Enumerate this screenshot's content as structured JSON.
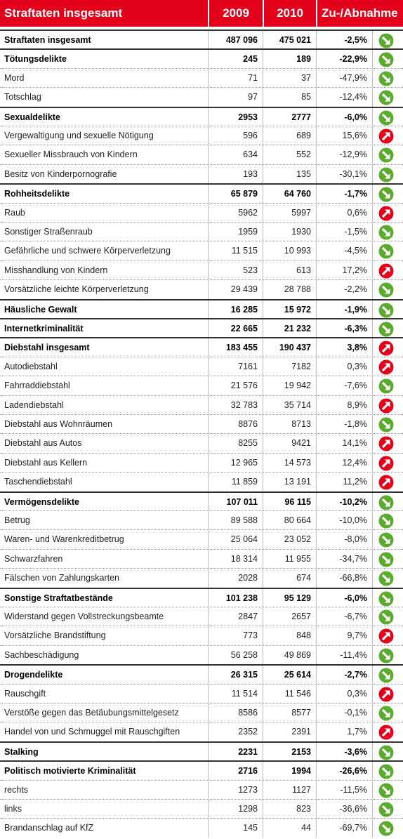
{
  "header": {
    "cells": [
      "Straftaten insgesamt",
      "2009",
      "2010",
      "Zu-/Abnahme"
    ]
  },
  "table": {
    "rows": [
      {
        "cells": [
          "Straftaten insgesamt",
          "487 096",
          "475 021",
          "-2,5%"
        ],
        "bold": true
      },
      {
        "cells": [
          "Tötungsdelikte",
          "245",
          "189",
          "-22,9%"
        ],
        "bold": true
      },
      {
        "cells": [
          "Mord",
          "71",
          "37",
          "-47,9%"
        ],
        "bold": false
      },
      {
        "cells": [
          "Totschlag",
          "97",
          "85",
          "-12,4%"
        ],
        "bold": false
      },
      {
        "cells": [
          "Sexualdelikte",
          "2953",
          "2777",
          "-6,0%"
        ],
        "bold": true
      },
      {
        "cells": [
          "Vergewaltigung und sexuelle Nötigung",
          "596",
          "689",
          "15,6%"
        ],
        "bold": false
      },
      {
        "cells": [
          "Sexueller Missbrauch von Kindern",
          "634",
          "552",
          "-12,9%"
        ],
        "bold": false
      },
      {
        "cells": [
          "Besitz von Kinderpornografie",
          "193",
          "135",
          "-30,1%"
        ],
        "bold": false
      },
      {
        "cells": [
          "Rohheitsdelikte",
          "65 879",
          "64 760",
          "-1,7%"
        ],
        "bold": true
      },
      {
        "cells": [
          "Raub",
          "5962",
          "5997",
          "0,6%"
        ],
        "bold": false
      },
      {
        "cells": [
          "Sonstiger Straßenraub",
          "1959",
          "1930",
          "-1,5%"
        ],
        "bold": false
      },
      {
        "cells": [
          "Gefährliche und schwere Körperverletzung",
          "11 515",
          "10 993",
          "-4,5%"
        ],
        "bold": false
      },
      {
        "cells": [
          "Misshandlung von Kindern",
          "523",
          "613",
          "17,2%"
        ],
        "bold": false
      },
      {
        "cells": [
          "Vorsätzliche leichte Körperverletzung",
          "29 439",
          "28 788",
          "-2,2%"
        ],
        "bold": false
      },
      {
        "cells": [
          "Häusliche Gewalt",
          "16 285",
          "15 972",
          "-1,9%"
        ],
        "bold": true
      },
      {
        "cells": [
          "Internetkriminalität",
          "22 665",
          "21 232",
          "-6,3%"
        ],
        "bold": true
      },
      {
        "cells": [
          "Diebstahl insgesamt",
          "183 455",
          "190 437",
          "3,8%"
        ],
        "bold": true
      },
      {
        "cells": [
          "Autodiebstahl",
          "7161",
          "7182",
          "0,3%"
        ],
        "bold": false
      },
      {
        "cells": [
          "Fahrraddiebstahl",
          "21 576",
          "19 942",
          "-7,6%"
        ],
        "bold": false
      },
      {
        "cells": [
          "Ladendiebstahl",
          "32 783",
          "35 714",
          "8,9%"
        ],
        "bold": false
      },
      {
        "cells": [
          "Diebstahl aus Wohnräumen",
          "8876",
          "8713",
          "-1,8%"
        ],
        "bold": false
      },
      {
        "cells": [
          "Diebstahl aus Autos",
          "8255",
          "9421",
          "14,1%"
        ],
        "bold": false
      },
      {
        "cells": [
          "Diebstahl aus Kellern",
          "12 965",
          "14 573",
          "12,4%"
        ],
        "bold": false
      },
      {
        "cells": [
          "Taschendiebstahl",
          "11 859",
          "13 191",
          "11,2%"
        ],
        "bold": false
      },
      {
        "cells": [
          "Vermögensdelikte",
          "107 011",
          "96 115",
          "-10,2%"
        ],
        "bold": true
      },
      {
        "cells": [
          "Betrug",
          "89 588",
          "80 664",
          "-10,0%"
        ],
        "bold": false
      },
      {
        "cells": [
          "Waren- und Warenkreditbetrug",
          "25 064",
          "23 052",
          "-8,0%"
        ],
        "bold": false
      },
      {
        "cells": [
          "Schwarzfahren",
          "18 314",
          "11 955",
          "-34,7%"
        ],
        "bold": false
      },
      {
        "cells": [
          "Fälschen von Zahlungskarten",
          "2028",
          "674",
          "-66,8%"
        ],
        "bold": false
      },
      {
        "cells": [
          "Sonstige Straftatbestände",
          "101 238",
          "95 129",
          "-6,0%"
        ],
        "bold": true
      },
      {
        "cells": [
          "Widerstand gegen Vollstreckungsbeamte",
          "2847",
          "2657",
          "-6,7%"
        ],
        "bold": false
      },
      {
        "cells": [
          "Vorsätzliche Brandstiftung",
          "773",
          "848",
          "9,7%"
        ],
        "bold": false
      },
      {
        "cells": [
          "Sachbeschädigung",
          "56 258",
          "49 869",
          "-11,4%"
        ],
        "bold": false
      },
      {
        "cells": [
          "Drogendelikte",
          "26 315",
          "25 614",
          "-2,7%"
        ],
        "bold": true
      },
      {
        "cells": [
          "Rauschgift",
          "11 514",
          "11 546",
          "0,3%"
        ],
        "bold": false
      },
      {
        "cells": [
          "Verstöße gegen das Betäubungsmittelgesetz",
          "8586",
          "8577",
          "-0,1%"
        ],
        "bold": false
      },
      {
        "cells": [
          "Handel von und Schmuggel mit Rauschgiften",
          "2352",
          "2391",
          "1,7%"
        ],
        "bold": false
      },
      {
        "cells": [
          "Stalking",
          "2231",
          "2153",
          "-3,6%"
        ],
        "bold": true
      },
      {
        "cells": [
          "Politisch motivierte Kriminalität",
          "2716",
          "1994",
          "-26,6%"
        ],
        "bold": true
      },
      {
        "cells": [
          "rechts",
          "1273",
          "1127",
          "-11,5%"
        ],
        "bold": false
      },
      {
        "cells": [
          "links",
          "1298",
          "823",
          "-36,6%"
        ],
        "bold": false
      },
      {
        "cells": [
          "Brandanschlag auf KfZ",
          "145",
          "44",
          "-69,7%"
        ],
        "bold": false
      }
    ]
  }
}
